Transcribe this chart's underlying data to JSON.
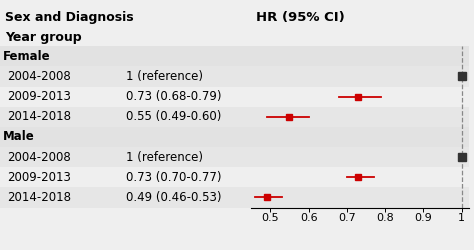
{
  "rows": [
    {
      "label": "Female",
      "hr_text": "",
      "hr": null,
      "ci_lo": null,
      "ci_hi": null,
      "is_header": true,
      "is_ref": false
    },
    {
      "label": "2004-2008",
      "hr_text": "1 (reference)",
      "hr": 1.0,
      "ci_lo": 1.0,
      "ci_hi": 1.0,
      "is_header": false,
      "is_ref": true
    },
    {
      "label": "2009-2013",
      "hr_text": "0.73 (0.68-0.79)",
      "hr": 0.73,
      "ci_lo": 0.68,
      "ci_hi": 0.79,
      "is_header": false,
      "is_ref": false
    },
    {
      "label": "2014-2018",
      "hr_text": "0.55 (0.49-0.60)",
      "hr": 0.55,
      "ci_lo": 0.49,
      "ci_hi": 0.6,
      "is_header": false,
      "is_ref": false
    },
    {
      "label": "Male",
      "hr_text": "",
      "hr": null,
      "ci_lo": null,
      "ci_hi": null,
      "is_header": true,
      "is_ref": false
    },
    {
      "label": "2004-2008",
      "hr_text": "1 (reference)",
      "hr": 1.0,
      "ci_lo": 1.0,
      "ci_hi": 1.0,
      "is_header": false,
      "is_ref": true
    },
    {
      "label": "2009-2013",
      "hr_text": "0.73 (0.70-0.77)",
      "hr": 0.73,
      "ci_lo": 0.7,
      "ci_hi": 0.77,
      "is_header": false,
      "is_ref": false
    },
    {
      "label": "2014-2018",
      "hr_text": "0.49 (0.46-0.53)",
      "hr": 0.49,
      "ci_lo": 0.46,
      "ci_hi": 0.53,
      "is_header": false,
      "is_ref": false
    }
  ],
  "xmin": 0.45,
  "xmax": 1.02,
  "xticks": [
    0.5,
    0.6,
    0.7,
    0.8,
    0.9,
    1.0
  ],
  "xticklabels": [
    "0.5",
    "0.6",
    "0.7",
    "0.8",
    "0.9",
    "1"
  ],
  "bg_color": "#efefef",
  "header_bg": "#e2e2e2",
  "alt_row_bg": "#e6e6e6",
  "point_color": "#cc0000",
  "ref_point_color": "#333333",
  "ci_color": "#cc0000",
  "refline_color": "#888888",
  "header_fontsize": 9,
  "row_fontsize": 8.5,
  "tick_fontsize": 8
}
